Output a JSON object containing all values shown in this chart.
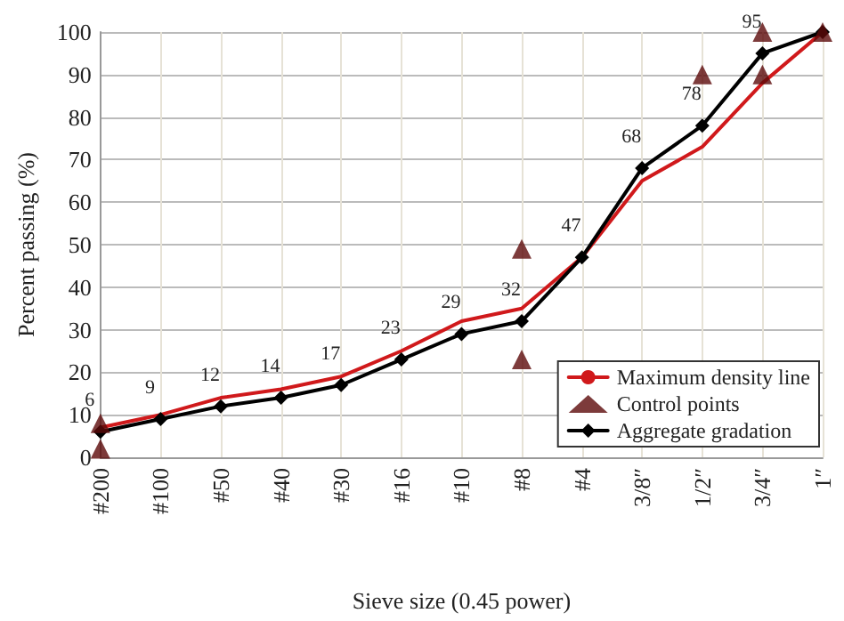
{
  "chart_data": {
    "type": "line",
    "xlabel": "Sieve size (0.45 power)",
    "ylabel": "Percent passing (%)",
    "categories": [
      "#200",
      "#100",
      "#50",
      "#40",
      "#30",
      "#16",
      "#10",
      "#8",
      "#4",
      "3/8″",
      "1/2″",
      "3/4″",
      "1″"
    ],
    "ylim": [
      0,
      100
    ],
    "yticks": [
      0,
      10,
      20,
      30,
      40,
      50,
      60,
      70,
      80,
      90,
      100
    ],
    "grid": true,
    "legend": "bottom right",
    "series": [
      {
        "name": "Maximum density line",
        "color": "#d0191b",
        "marker": "none",
        "values": [
          7,
          10,
          14,
          16,
          19,
          25,
          32,
          35,
          47,
          65,
          73,
          88,
          100
        ]
      },
      {
        "name": "Control points",
        "type": "scatter",
        "color": "#5c0a0a",
        "marker": "triangle",
        "x": [
          "#200",
          "#200",
          "#8",
          "#8",
          "1/2″",
          "3/4″",
          "3/4″",
          "1″"
        ],
        "values": [
          2,
          8,
          23,
          49,
          90,
          90,
          100,
          100
        ]
      },
      {
        "name": "Aggregate gradation",
        "color": "#000000",
        "marker": "diamond",
        "values": [
          6,
          9,
          12,
          14,
          17,
          23,
          29,
          32,
          47,
          68,
          78,
          95,
          100
        ],
        "value_labels": [
          "6",
          "9",
          "12",
          "14",
          "17",
          "23",
          "29",
          "32",
          "47",
          "68",
          "78",
          "95",
          null
        ]
      }
    ]
  }
}
